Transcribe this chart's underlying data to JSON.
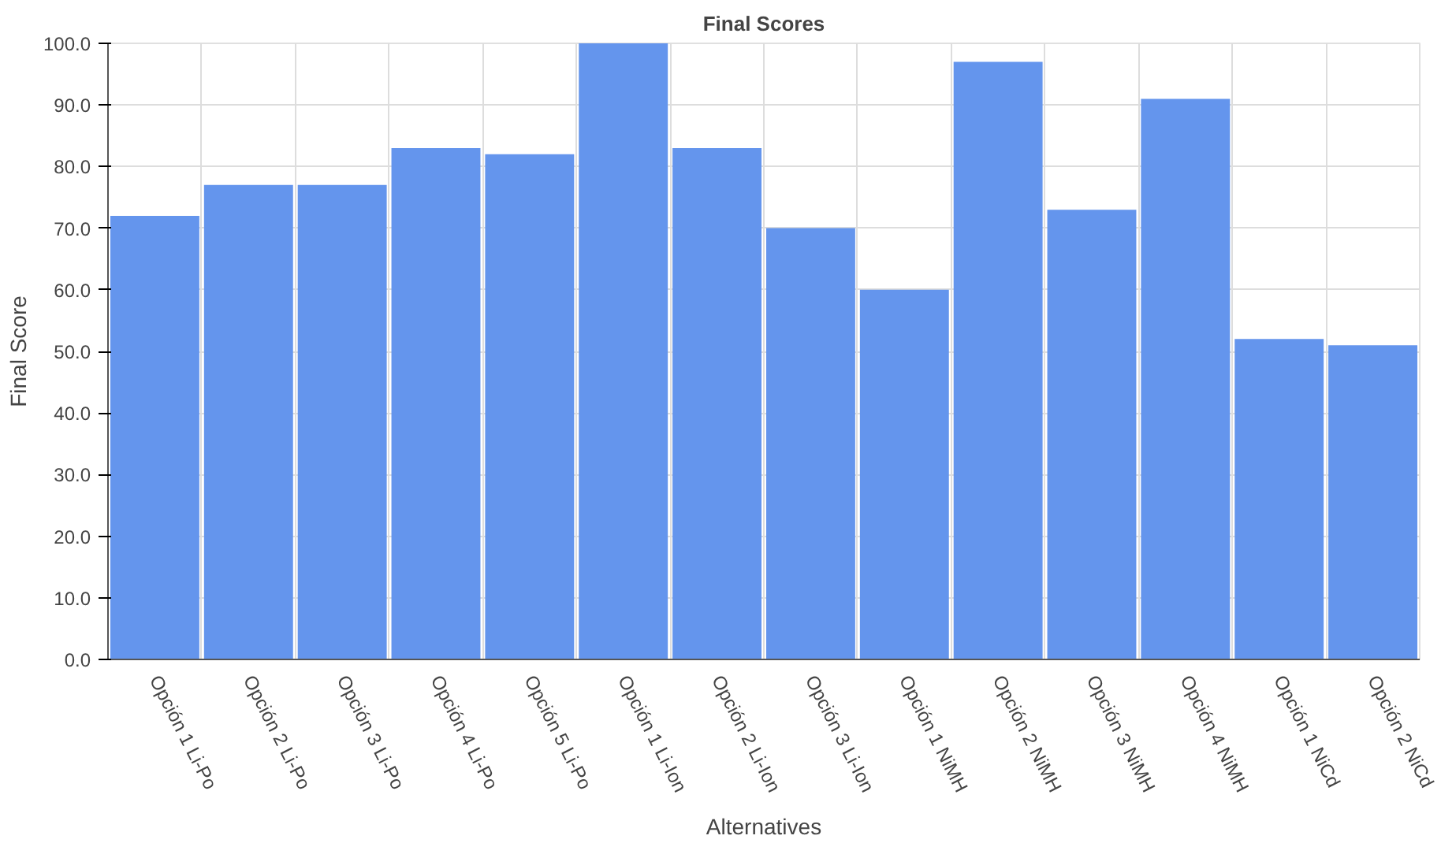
{
  "chart_data": {
    "type": "bar",
    "title": "Final Scores",
    "xlabel": "Alternatives",
    "ylabel": "Final Score",
    "categories": [
      "Opción 1 Li-Po",
      "Opción 2 Li-Po",
      "Opción 3 Li-Po",
      "Opción 4 Li-Po",
      "Opción 5 Li-Po",
      "Opción 1 Li-Ion",
      "Opción 2 Li-Ion",
      "Opción 3 Li-Ion",
      "Opción 1 NiMH",
      "Opción 2 NiMH",
      "Opción 3 NiMH",
      "Opción 4 NiMH",
      "Opción 1 NiCd",
      "Opción 2 NiCd"
    ],
    "values": [
      72,
      77,
      77,
      83,
      82,
      100,
      83,
      70,
      60,
      97,
      73,
      91,
      52,
      51
    ],
    "color": "#6495ed",
    "ylim": [
      0,
      100
    ],
    "yticks": [
      {
        "value": 0,
        "label": "0.0"
      },
      {
        "value": 10,
        "label": "10.0"
      },
      {
        "value": 20,
        "label": "20.0"
      },
      {
        "value": 30,
        "label": "30.0"
      },
      {
        "value": 40,
        "label": "40.0"
      },
      {
        "value": 50,
        "label": "50.0"
      },
      {
        "value": 60,
        "label": "60.0"
      },
      {
        "value": 70,
        "label": "70.0"
      },
      {
        "value": 80,
        "label": "80.0"
      },
      {
        "value": 90,
        "label": "90.0"
      },
      {
        "value": 100,
        "label": "100.0"
      }
    ],
    "grid": true
  }
}
